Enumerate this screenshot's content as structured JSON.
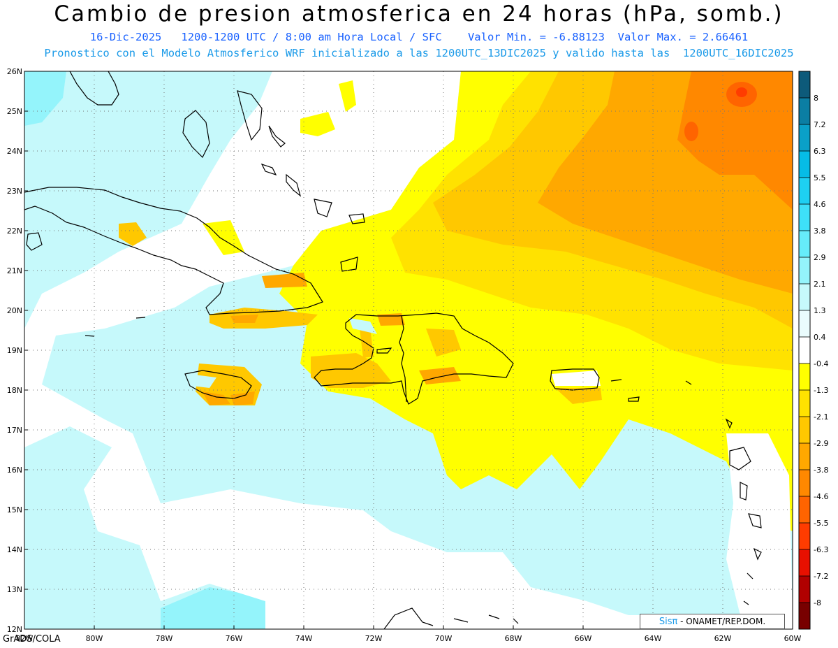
{
  "header": {
    "title": "Cambio de presion atmosferica en 24 horas (hPa, somb.)",
    "line1": "16-Dic-2025   1200-1200 UTC / 8:00 am Hora Local / SFC    Valor Min. = -6.88123  Valor Max. = 2.66461",
    "line2": "Pronostico con el Modelo Atmosferico WRF inicializado a las 1200UTC_13DIC2025 y valido hasta las  1200UTC_16DIC2025"
  },
  "map": {
    "lat_labels": [
      "26N",
      "25N",
      "24N",
      "23N",
      "22N",
      "21N",
      "20N",
      "19N",
      "18N",
      "17N",
      "16N",
      "15N",
      "14N",
      "13N",
      "12N"
    ],
    "lon_labels": [
      "82W",
      "80W",
      "78W",
      "76W",
      "74W",
      "72W",
      "70W",
      "68W",
      "66W",
      "64W",
      "62W",
      "60W"
    ],
    "lat_range": [
      12,
      26
    ],
    "lon_range": [
      -82,
      -60
    ],
    "grid": true
  },
  "colorbar": {
    "labels": [
      "8",
      "7.2",
      "6.3",
      "5.5",
      "4.6",
      "3.8",
      "2.9",
      "2.1",
      "1.3",
      "0.4",
      "-0.4",
      "-1.3",
      "-2.1",
      "-2.9",
      "-3.8",
      "-4.6",
      "-5.5",
      "-6.3",
      "-7.2",
      "-8"
    ],
    "colors": [
      "#0d5a7a",
      "#0b7ea3",
      "#0aa0c8",
      "#06bce6",
      "#1ed0f2",
      "#3ee0f8",
      "#66ecfa",
      "#94f4fb",
      "#c6f9fb",
      "#eafcfd",
      "#ffffff",
      "#ffff00",
      "#ffe200",
      "#ffc800",
      "#ffa800",
      "#ff8800",
      "#ff6400",
      "#ff3c00",
      "#e81000",
      "#b00000",
      "#780000"
    ]
  },
  "footer": {
    "credit": "GrADS/COLA",
    "logo_mark": "Sisπ",
    "logo_text": " - ONAMET/REP.DOM."
  }
}
